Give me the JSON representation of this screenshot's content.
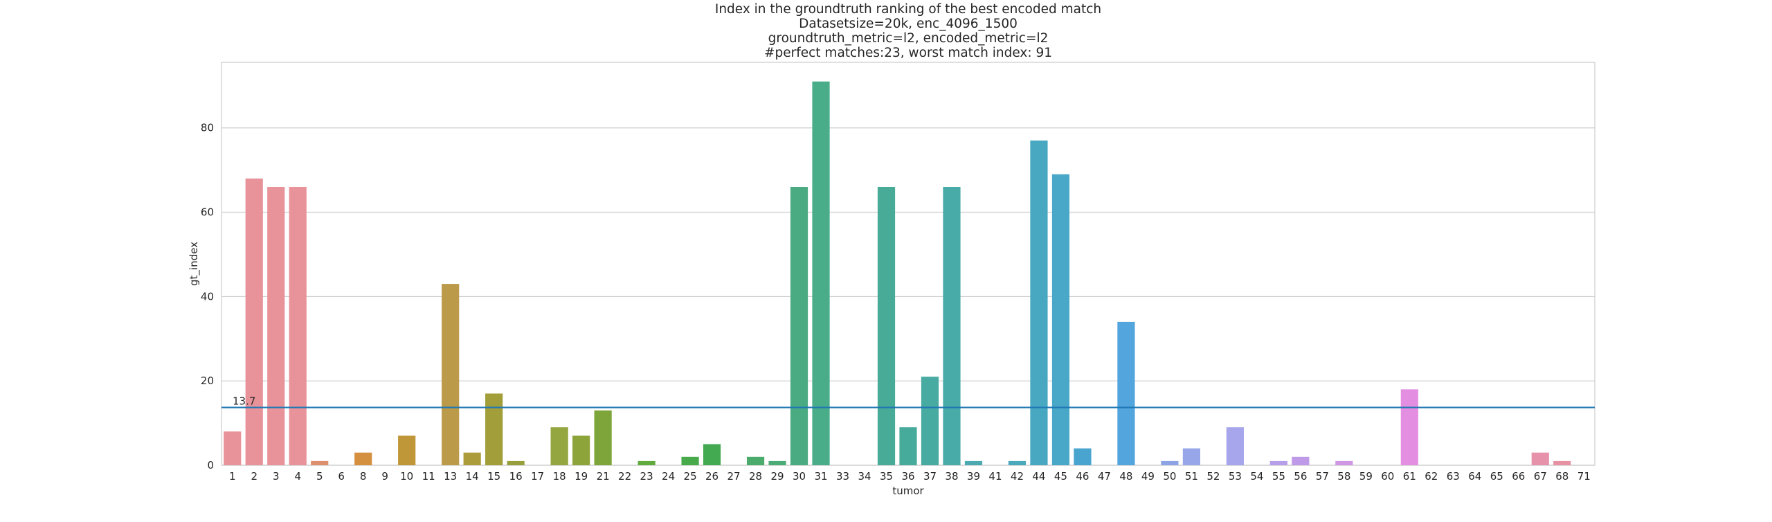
{
  "chart_data": {
    "type": "bar",
    "title_lines": [
      "Index in the groundtruth ranking of the best encoded match",
      "Datasetsize=20k, enc_4096_1500",
      "groundtruth_metric=l2, encoded_metric=l2",
      "#perfect matches:23, worst match index: 91"
    ],
    "xlabel": "tumor",
    "ylabel": "gt_index",
    "ylim": [
      0,
      95.55
    ],
    "yticks": [
      0,
      20,
      40,
      60,
      80
    ],
    "grid": true,
    "categories": [
      "1",
      "2",
      "3",
      "4",
      "5",
      "6",
      "8",
      "9",
      "10",
      "11",
      "13",
      "14",
      "15",
      "16",
      "17",
      "18",
      "19",
      "21",
      "22",
      "23",
      "24",
      "25",
      "26",
      "27",
      "28",
      "29",
      "30",
      "31",
      "33",
      "34",
      "35",
      "36",
      "37",
      "38",
      "39",
      "41",
      "42",
      "44",
      "45",
      "46",
      "47",
      "48",
      "49",
      "50",
      "51",
      "52",
      "53",
      "54",
      "55",
      "56",
      "57",
      "58",
      "59",
      "60",
      "61",
      "62",
      "63",
      "64",
      "65",
      "66",
      "67",
      "68",
      "71"
    ],
    "values": [
      8,
      68,
      66,
      66,
      1,
      0,
      3,
      0,
      7,
      0,
      43,
      3,
      17,
      1,
      0,
      9,
      7,
      13,
      0,
      1,
      0,
      2,
      5,
      0,
      2,
      1,
      66,
      91,
      0,
      0,
      66,
      9,
      21,
      66,
      1,
      0,
      1,
      77,
      69,
      4,
      0,
      34,
      0,
      1,
      4,
      0,
      9,
      0,
      1,
      2,
      0,
      1,
      0,
      0,
      18,
      0,
      0,
      0,
      0,
      0,
      3,
      1,
      0
    ],
    "colors": [
      "#e8939a",
      "#e8939a",
      "#e8939a",
      "#e8939a",
      "#dd8e6c",
      "#d98e55",
      "#d5903f",
      "#c89338",
      "#bf9638",
      "#b49937",
      "#bb9a49",
      "#ac9c3a",
      "#a29e3a",
      "#969f3a",
      "#8ca23c",
      "#93a63f",
      "#8da43a",
      "#7ea53a",
      "#6fa83c",
      "#60aa3e",
      "#50aa44",
      "#47aa4a",
      "#43aa52",
      "#47ab60",
      "#4bab6c",
      "#4bac78",
      "#4aab83",
      "#49ad8a",
      "#48ac8e",
      "#47aa94",
      "#48ab98",
      "#47ab9c",
      "#48aba2",
      "#49aba8",
      "#4aaaaf",
      "#4aabb5",
      "#4aaabb",
      "#48a8c2",
      "#49a7c8",
      "#49a4d0",
      "#4aa2d7",
      "#52a5dd",
      "#74a6e1",
      "#8ca4e6",
      "#96a6e9",
      "#a3a6ec",
      "#a7a6ec",
      "#aea2ea",
      "#b69ee8",
      "#bf9ae8",
      "#c898e6",
      "#cf96e4",
      "#d894e3",
      "#e08fe1",
      "#e38ee0",
      "#e48ed8",
      "#e590cd",
      "#e690c5",
      "#e792bc",
      "#e792b4",
      "#e692ab",
      "#e692a3",
      "#e8939a"
    ],
    "mean_line": {
      "value": 13.7,
      "label": "13.7",
      "color": "#1f77b4"
    },
    "perfect_matches": 23,
    "worst_match_index": 91
  }
}
